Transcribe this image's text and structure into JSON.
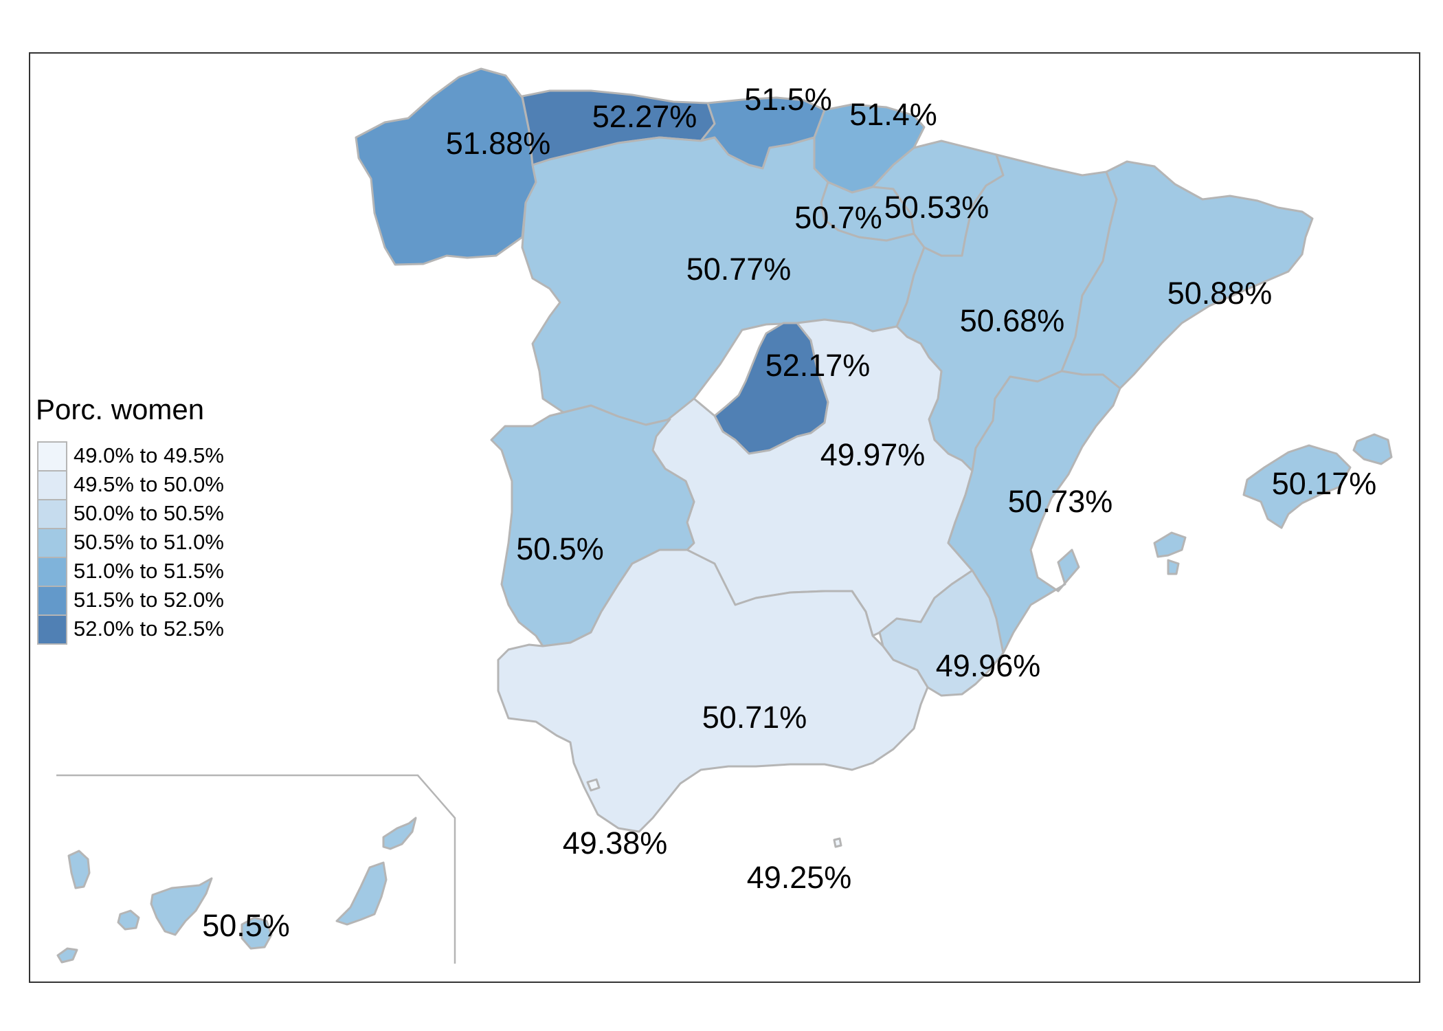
{
  "legend": {
    "title": "Porc. women",
    "classes": [
      {
        "label": "49.0% to 49.5%",
        "color": "#eff5fb"
      },
      {
        "label": "49.5% to 50.0%",
        "color": "#dfeaf6"
      },
      {
        "label": "50.0% to 50.5%",
        "color": "#c6dcee"
      },
      {
        "label": "50.5% to 51.0%",
        "color": "#a1c9e4"
      },
      {
        "label": "51.0% to 51.5%",
        "color": "#7fb3da"
      },
      {
        "label": "51.5% to 52.0%",
        "color": "#6399ca"
      },
      {
        "label": "52.0% to 52.5%",
        "color": "#5080b4"
      }
    ]
  },
  "regions": [
    {
      "name": "Galicia",
      "value": 51.88,
      "label": "51.88%"
    },
    {
      "name": "Asturias",
      "value": 52.27,
      "label": "52.27%"
    },
    {
      "name": "Cantabria",
      "value": 51.5,
      "label": "51.5%"
    },
    {
      "name": "País Vasco",
      "value": 51.4,
      "label": "51.4%"
    },
    {
      "name": "Navarra",
      "value": 50.53,
      "label": "50.53%"
    },
    {
      "name": "La Rioja",
      "value": 50.7,
      "label": "50.7%"
    },
    {
      "name": "Castilla y León",
      "value": 50.77,
      "label": "50.77%"
    },
    {
      "name": "Aragón",
      "value": 50.68,
      "label": "50.68%"
    },
    {
      "name": "Cataluña",
      "value": 50.88,
      "label": "50.88%"
    },
    {
      "name": "Madrid",
      "value": 52.17,
      "label": "52.17%"
    },
    {
      "name": "Castilla-La Mancha",
      "value": 49.97,
      "label": "49.97%"
    },
    {
      "name": "Comunidad Valenciana",
      "value": 50.73,
      "label": "50.73%"
    },
    {
      "name": "Illes Balears",
      "value": 50.17,
      "label": "50.17%"
    },
    {
      "name": "Extremadura",
      "value": 50.5,
      "label": "50.5%"
    },
    {
      "name": "Murcia",
      "value": 49.96,
      "label": "49.96%"
    },
    {
      "name": "Andalucía",
      "value": 50.71,
      "label": "50.71%"
    },
    {
      "name": "Ceuta",
      "value": 49.38,
      "label": "49.38%"
    },
    {
      "name": "Melilla",
      "value": 49.25,
      "label": "49.25%"
    },
    {
      "name": "Canarias",
      "value": 50.5,
      "label": "50.5%"
    }
  ]
}
